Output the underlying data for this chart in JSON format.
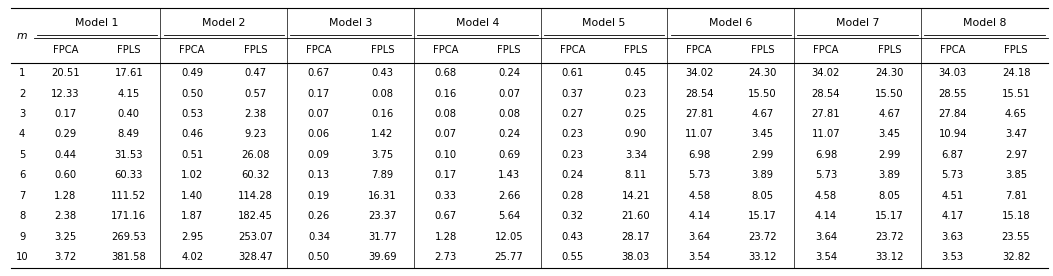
{
  "col_headers_top": [
    "Model 1",
    "Model 2",
    "Model 3",
    "Model 4",
    "Model 5",
    "Model 6",
    "Model 7",
    "Model 8"
  ],
  "col_headers_sub": [
    "FPCA",
    "FPLS",
    "FPCA",
    "FPLS",
    "FPCA",
    "FPLS",
    "FPCA",
    "FPLS",
    "FPCA",
    "FPLS",
    "FPCA",
    "FPLS",
    "FPCA",
    "FPLS",
    "FPCA",
    "FPLS"
  ],
  "row_labels": [
    "1",
    "2",
    "3",
    "4",
    "5",
    "6",
    "7",
    "8",
    "9",
    "10"
  ],
  "table_data": [
    [
      "20.51",
      "17.61",
      "0.49",
      "0.47",
      "0.67",
      "0.43",
      "0.68",
      "0.24",
      "0.61",
      "0.45",
      "34.02",
      "24.30",
      "34.02",
      "24.30",
      "34.03",
      "24.18"
    ],
    [
      "12.33",
      "4.15",
      "0.50",
      "0.57",
      "0.17",
      "0.08",
      "0.16",
      "0.07",
      "0.37",
      "0.23",
      "28.54",
      "15.50",
      "28.54",
      "15.50",
      "28.55",
      "15.51"
    ],
    [
      "0.17",
      "0.40",
      "0.53",
      "2.38",
      "0.07",
      "0.16",
      "0.08",
      "0.08",
      "0.27",
      "0.25",
      "27.81",
      "4.67",
      "27.81",
      "4.67",
      "27.84",
      "4.65"
    ],
    [
      "0.29",
      "8.49",
      "0.46",
      "9.23",
      "0.06",
      "1.42",
      "0.07",
      "0.24",
      "0.23",
      "0.90",
      "11.07",
      "3.45",
      "11.07",
      "3.45",
      "10.94",
      "3.47"
    ],
    [
      "0.44",
      "31.53",
      "0.51",
      "26.08",
      "0.09",
      "3.75",
      "0.10",
      "0.69",
      "0.23",
      "3.34",
      "6.98",
      "2.99",
      "6.98",
      "2.99",
      "6.87",
      "2.97"
    ],
    [
      "0.60",
      "60.33",
      "1.02",
      "60.32",
      "0.13",
      "7.89",
      "0.17",
      "1.43",
      "0.24",
      "8.11",
      "5.73",
      "3.89",
      "5.73",
      "3.89",
      "5.73",
      "3.85"
    ],
    [
      "1.28",
      "111.52",
      "1.40",
      "114.28",
      "0.19",
      "16.31",
      "0.33",
      "2.66",
      "0.28",
      "14.21",
      "4.58",
      "8.05",
      "4.58",
      "8.05",
      "4.51",
      "7.81"
    ],
    [
      "2.38",
      "171.16",
      "1.87",
      "182.45",
      "0.26",
      "23.37",
      "0.67",
      "5.64",
      "0.32",
      "21.60",
      "4.14",
      "15.17",
      "4.14",
      "15.17",
      "4.17",
      "15.18"
    ],
    [
      "3.25",
      "269.53",
      "2.95",
      "253.07",
      "0.34",
      "31.77",
      "1.28",
      "12.05",
      "0.43",
      "28.17",
      "3.64",
      "23.72",
      "3.64",
      "23.72",
      "3.63",
      "23.55"
    ],
    [
      "3.72",
      "381.58",
      "4.02",
      "328.47",
      "0.50",
      "39.69",
      "2.73",
      "25.77",
      "0.55",
      "38.03",
      "3.54",
      "33.12",
      "3.54",
      "33.12",
      "3.53",
      "32.82"
    ]
  ],
  "bg_color": "#ffffff",
  "text_color": "#000000",
  "fontsize": 7.2,
  "header_fontsize": 7.8,
  "fig_width": 10.53,
  "fig_height": 2.76,
  "dpi": 100
}
